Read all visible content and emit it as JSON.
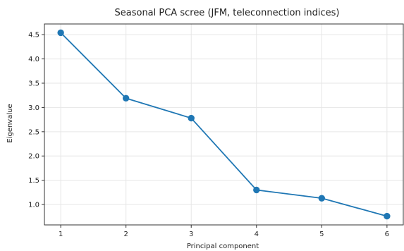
{
  "chart_data": {
    "type": "line",
    "title": "Seasonal PCA scree (JFM, teleconnection indices)",
    "xlabel": "Principal component",
    "ylabel": "Eigenvalue",
    "x": [
      1,
      2,
      3,
      4,
      5,
      6
    ],
    "x_ticks": [
      "1",
      "2",
      "3",
      "4",
      "5",
      "6"
    ],
    "y_ticks": [
      "1.0",
      "1.5",
      "2.0",
      "2.5",
      "3.0",
      "3.5",
      "4.0",
      "4.5"
    ],
    "y_tick_values": [
      1.0,
      1.5,
      2.0,
      2.5,
      3.0,
      3.5,
      4.0,
      4.5
    ],
    "xlim": [
      0.75,
      6.25
    ],
    "ylim": [
      0.58,
      4.72
    ],
    "series": [
      {
        "values": [
          4.54,
          3.19,
          2.78,
          1.3,
          1.13,
          0.76
        ],
        "color": "#1f77b4",
        "marker": "circle"
      }
    ],
    "grid": true,
    "colors": {
      "line": "#1f77b4",
      "grid": "#e6e6e6",
      "axes": "#333333"
    }
  }
}
